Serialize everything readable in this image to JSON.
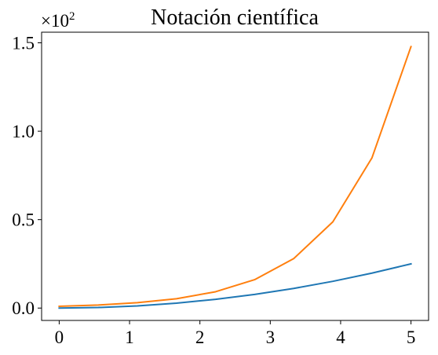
{
  "chart_data": {
    "type": "line",
    "title": "Notación científica",
    "xlabel": "",
    "ylabel": "",
    "offset_text": {
      "prefix": "×10",
      "exponent": "2"
    },
    "xlim": [
      -0.25,
      5.25
    ],
    "ylim": [
      -0.07,
      1.56
    ],
    "x_ticks": [
      0,
      1,
      2,
      3,
      4,
      5
    ],
    "x_tick_labels": [
      "0",
      "1",
      "2",
      "3",
      "4",
      "5"
    ],
    "y_ticks": [
      0.0,
      0.5,
      1.0,
      1.5
    ],
    "y_tick_labels": [
      "0.0",
      "0.5",
      "1.0",
      "1.5"
    ],
    "grid": false,
    "x": [
      0,
      0.5556,
      1.1111,
      1.6667,
      2.2222,
      2.7778,
      3.3333,
      3.8889,
      4.4444,
      5
    ],
    "series": [
      {
        "color": "#1f77b4",
        "values": [
          0.0,
          0.0031,
          0.0123,
          0.0278,
          0.0494,
          0.0772,
          0.1111,
          0.1512,
          0.1975,
          0.25
        ]
      },
      {
        "color": "#ff7f0e",
        "values": [
          0.01,
          0.0174,
          0.0304,
          0.0529,
          0.0922,
          0.1606,
          0.2797,
          0.4872,
          0.8487,
          1.4784
        ]
      }
    ]
  }
}
